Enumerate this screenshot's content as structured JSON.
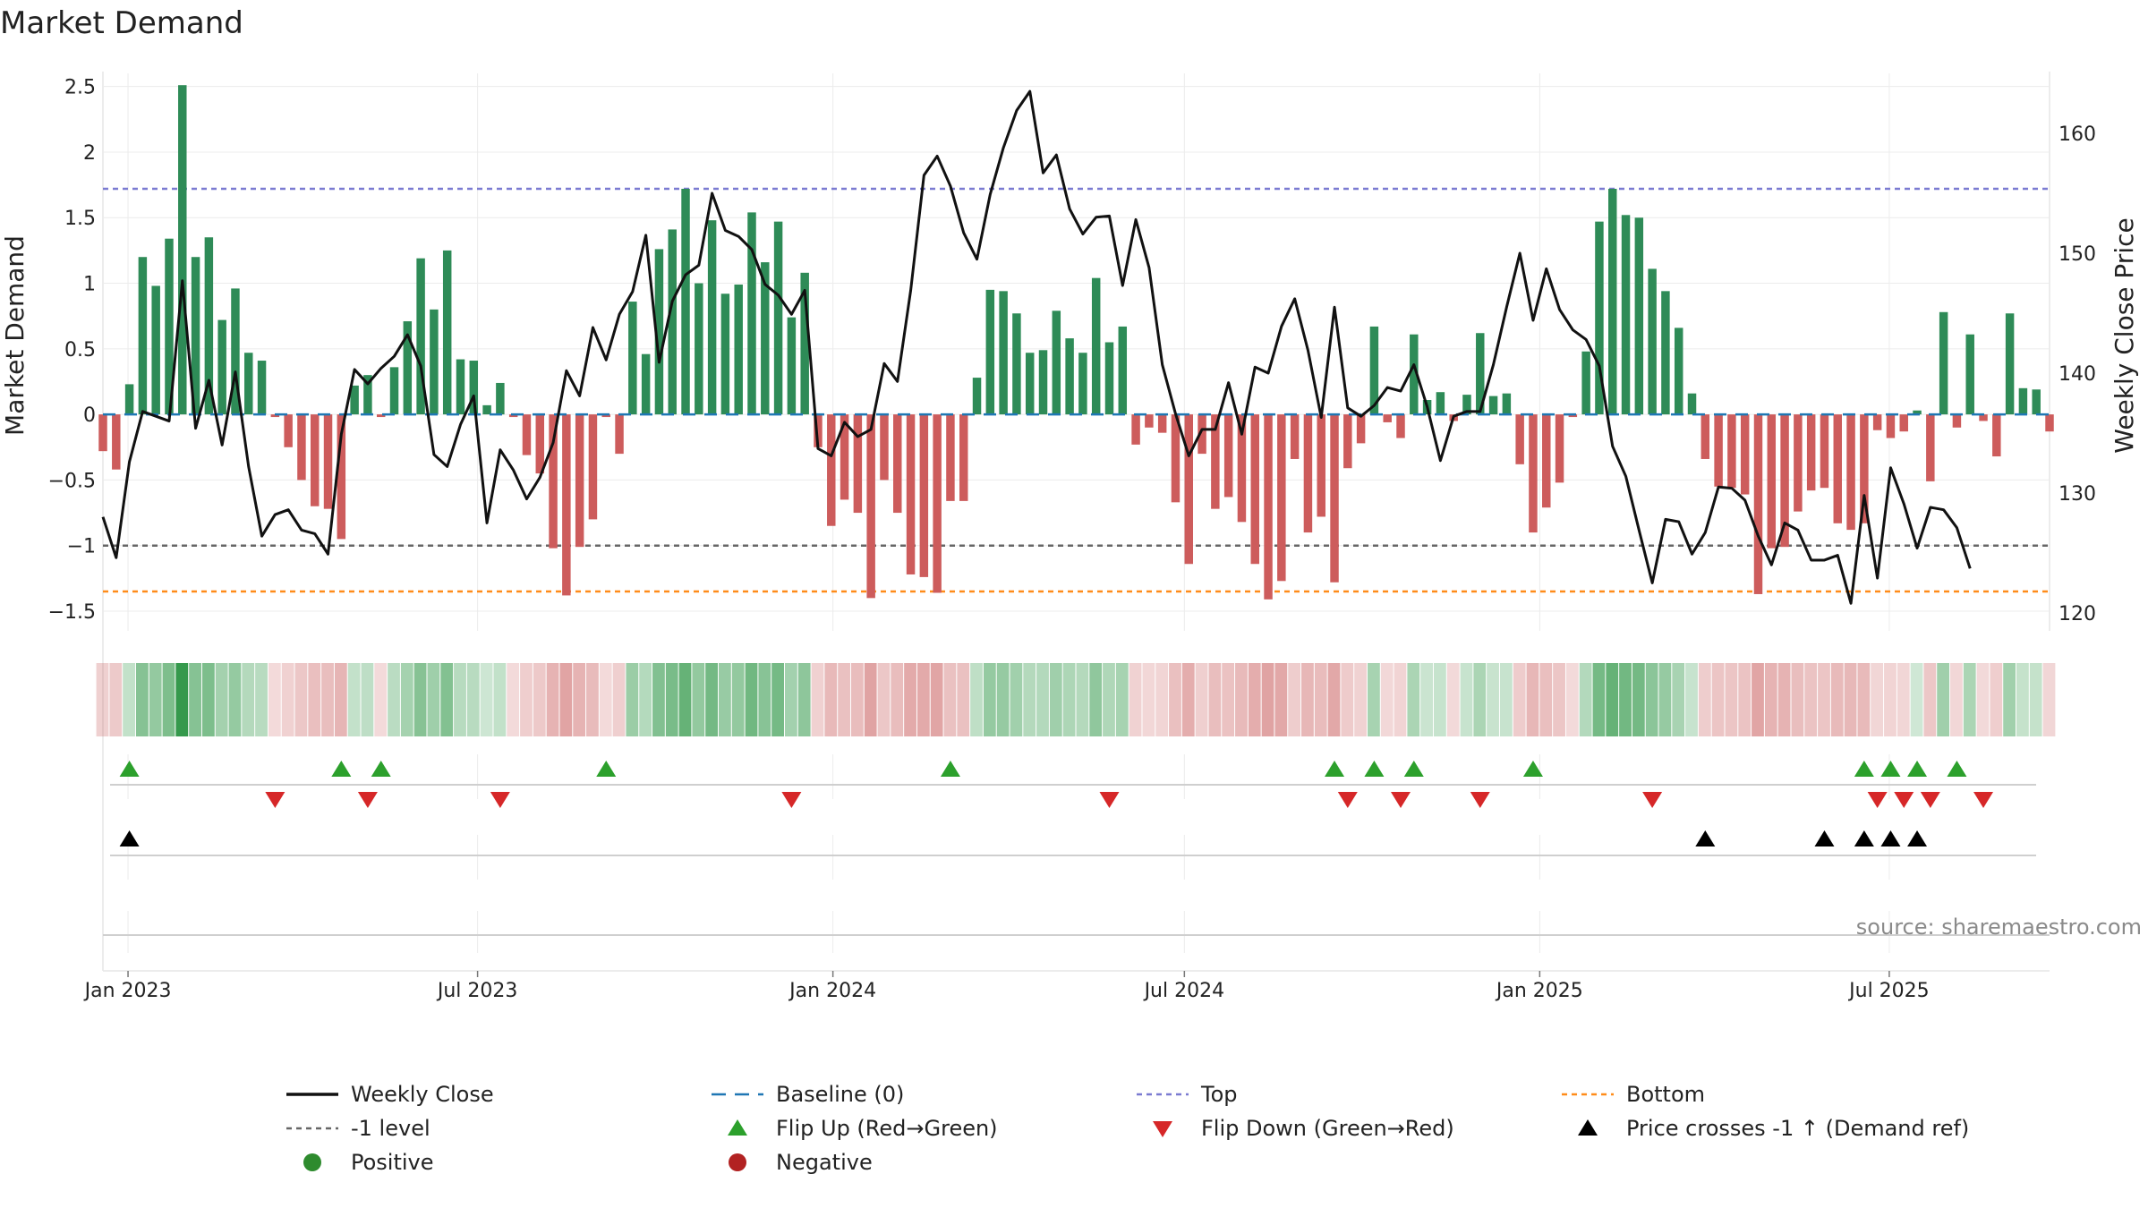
{
  "chart_data": {
    "type": "bar+line",
    "title": "Market Demand",
    "ylabel": "Market Demand",
    "y2label": "Weekly Close Price",
    "ylim": [
      -1.65,
      2.6
    ],
    "y2lim": [
      118.5,
      165
    ],
    "yticks": [
      2.5,
      2,
      1.5,
      1,
      0.5,
      0,
      -0.5,
      -1,
      -1.5
    ],
    "ytick_labels": [
      "2.5",
      "2",
      "1.5",
      "1",
      "0.5",
      "0",
      "−0.5",
      "−1",
      "−1.5"
    ],
    "y2ticks": [
      160,
      150,
      140,
      130,
      120
    ],
    "y2tick_labels": [
      "160",
      "150",
      "140",
      "130",
      "120"
    ],
    "xticks": [
      "2023-01-01",
      "2023-07-01",
      "2024-01-01",
      "2024-07-01",
      "2025-01-01",
      "2025-07-01"
    ],
    "xtick_labels": [
      "Jan 2023",
      "Jul 2023",
      "Jan 2024",
      "Jul 2024",
      "Jan 2025",
      "Jul 2025"
    ],
    "xstart": "2022-12-19",
    "xend": "2025-09-22",
    "levels": {
      "top": 1.72,
      "bottom": -1.35,
      "minus_one": -1
    },
    "demand": [
      -0.28,
      -0.42,
      0.23,
      1.2,
      0.98,
      1.34,
      2.51,
      1.2,
      1.35,
      0.72,
      0.96,
      0.47,
      0.41,
      -0.02,
      -0.25,
      -0.5,
      -0.7,
      -0.72,
      -0.95,
      0.22,
      0.3,
      -0.02,
      0.36,
      0.71,
      1.19,
      0.8,
      1.25,
      0.42,
      0.41,
      0.07,
      0.24,
      -0.02,
      -0.31,
      -0.45,
      -1.02,
      -1.38,
      -1.01,
      -0.8,
      -0.02,
      -0.3,
      0.86,
      0.46,
      1.26,
      1.41,
      1.72,
      1.0,
      1.48,
      0.92,
      0.99,
      1.54,
      1.16,
      1.47,
      0.74,
      1.08,
      -0.25,
      -0.85,
      -0.65,
      -0.75,
      -1.4,
      -0.5,
      -0.75,
      -1.22,
      -1.24,
      -1.36,
      -0.66,
      -0.66,
      0.28,
      0.95,
      0.94,
      0.77,
      0.47,
      0.49,
      0.79,
      0.58,
      0.47,
      1.04,
      0.55,
      0.67,
      -0.23,
      -0.1,
      -0.14,
      -0.67,
      -1.14,
      -0.3,
      -0.72,
      -0.63,
      -0.82,
      -1.14,
      -1.41,
      -1.27,
      -0.34,
      -0.9,
      -0.78,
      -1.28,
      -0.41,
      -0.22,
      0.67,
      -0.06,
      -0.18,
      0.61,
      0.11,
      0.17,
      -0.05,
      0.15,
      0.62,
      0.14,
      0.16,
      -0.38,
      -0.9,
      -0.71,
      -0.52,
      -0.02,
      0.48,
      1.47,
      1.72,
      1.52,
      1.5,
      1.11,
      0.94,
      0.66,
      0.16,
      -0.34,
      -0.55,
      -0.56,
      -0.61,
      -1.37,
      -1.02,
      -1.01,
      -0.74,
      -0.58,
      -0.56,
      -0.83,
      -0.88,
      -0.83,
      -0.12,
      -0.18,
      -0.13,
      0.03,
      -0.51,
      0.78,
      -0.1,
      0.61,
      -0.05,
      -0.32,
      0.77,
      0.2,
      0.19,
      -0.13
    ],
    "close_points": [
      [
        0,
        128.0
      ],
      [
        1,
        124.6
      ],
      [
        2,
        132.6
      ],
      [
        3,
        136.8
      ],
      [
        4,
        136.4
      ],
      [
        5,
        136.0
      ],
      [
        6,
        147.7
      ],
      [
        7,
        135.4
      ],
      [
        8,
        139.4
      ],
      [
        9,
        134.0
      ],
      [
        10,
        140.1
      ],
      [
        11,
        132.2
      ],
      [
        12,
        126.4
      ],
      [
        13,
        128.2
      ],
      [
        14,
        128.6
      ],
      [
        15,
        126.9
      ],
      [
        16,
        126.6
      ],
      [
        17,
        124.9
      ],
      [
        18,
        134.9
      ],
      [
        19,
        140.3
      ],
      [
        20,
        139.1
      ],
      [
        21,
        140.4
      ],
      [
        22,
        141.4
      ],
      [
        23,
        143.2
      ],
      [
        24,
        140.6
      ],
      [
        25,
        133.2
      ],
      [
        26,
        132.2
      ],
      [
        27,
        135.7
      ],
      [
        28,
        138.1
      ],
      [
        29,
        127.5
      ],
      [
        30,
        133.6
      ],
      [
        31,
        131.9
      ],
      [
        32,
        129.5
      ],
      [
        33,
        131.3
      ],
      [
        34,
        134.2
      ],
      [
        35,
        140.2
      ],
      [
        36,
        138.1
      ],
      [
        37,
        143.8
      ],
      [
        38,
        141.1
      ],
      [
        39,
        144.9
      ],
      [
        40,
        146.8
      ],
      [
        41,
        151.5
      ],
      [
        42,
        140.9
      ],
      [
        43,
        146.0
      ],
      [
        44,
        148.2
      ],
      [
        45,
        149.0
      ],
      [
        46,
        155.0
      ],
      [
        47,
        151.9
      ],
      [
        48,
        151.4
      ],
      [
        49,
        150.3
      ],
      [
        50,
        147.4
      ],
      [
        51,
        146.5
      ],
      [
        52,
        144.9
      ],
      [
        53,
        146.9
      ],
      [
        54,
        133.7
      ],
      [
        55,
        133.1
      ],
      [
        56,
        135.9
      ],
      [
        57,
        134.7
      ],
      [
        58,
        135.3
      ],
      [
        59,
        140.8
      ],
      [
        60,
        139.3
      ],
      [
        61,
        146.9
      ],
      [
        62,
        156.5
      ],
      [
        63,
        158.1
      ],
      [
        64,
        155.6
      ],
      [
        65,
        151.7
      ],
      [
        66,
        149.5
      ],
      [
        67,
        154.9
      ],
      [
        68,
        158.8
      ],
      [
        69,
        161.9
      ],
      [
        70,
        163.5
      ],
      [
        71,
        156.7
      ],
      [
        72,
        158.2
      ],
      [
        73,
        153.7
      ],
      [
        74,
        151.6
      ],
      [
        75,
        153.0
      ],
      [
        76,
        153.1
      ],
      [
        77,
        147.3
      ],
      [
        78,
        152.8
      ],
      [
        79,
        148.8
      ],
      [
        80,
        140.7
      ],
      [
        81,
        136.6
      ],
      [
        82,
        133.1
      ],
      [
        83,
        135.3
      ],
      [
        84,
        135.3
      ],
      [
        85,
        139.2
      ],
      [
        86,
        134.9
      ],
      [
        87,
        140.5
      ],
      [
        88,
        140.0
      ],
      [
        89,
        143.9
      ],
      [
        90,
        146.2
      ],
      [
        91,
        141.9
      ],
      [
        92,
        136.3
      ],
      [
        93,
        145.5
      ],
      [
        94,
        137.1
      ],
      [
        95,
        136.4
      ],
      [
        96,
        137.3
      ],
      [
        97,
        138.8
      ],
      [
        98,
        138.5
      ],
      [
        99,
        140.7
      ],
      [
        100,
        137.2
      ],
      [
        101,
        132.7
      ],
      [
        102,
        136.4
      ],
      [
        103,
        136.8
      ],
      [
        104,
        136.8
      ],
      [
        105,
        140.7
      ],
      [
        106,
        145.5
      ],
      [
        107,
        150.0
      ],
      [
        108,
        144.4
      ],
      [
        109,
        148.7
      ],
      [
        110,
        145.3
      ],
      [
        111,
        143.6
      ],
      [
        112,
        142.8
      ],
      [
        113,
        140.6
      ],
      [
        114,
        133.9
      ],
      [
        115,
        131.4
      ],
      [
        116,
        126.9
      ],
      [
        117,
        122.5
      ],
      [
        118,
        127.8
      ],
      [
        119,
        127.6
      ],
      [
        120,
        124.9
      ],
      [
        121,
        126.7
      ],
      [
        122,
        130.5
      ],
      [
        123,
        130.4
      ],
      [
        124,
        129.4
      ],
      [
        125,
        126.4
      ],
      [
        126,
        124.0
      ],
      [
        127,
        127.5
      ],
      [
        128,
        126.9
      ],
      [
        129,
        124.4
      ],
      [
        130,
        124.4
      ],
      [
        131,
        124.8
      ],
      [
        132,
        120.8
      ],
      [
        133,
        129.8
      ],
      [
        134,
        122.9
      ],
      [
        135,
        132.1
      ],
      [
        136,
        129.1
      ],
      [
        137,
        125.4
      ],
      [
        138,
        128.8
      ],
      [
        139,
        128.6
      ],
      [
        140,
        127.1
      ],
      [
        141,
        123.7
      ]
    ],
    "flip_up_weeks": [
      2,
      18,
      21,
      38,
      64,
      93,
      96,
      99,
      108,
      133,
      135,
      137,
      140
    ],
    "flip_down_weeks": [
      13,
      20,
      30,
      52,
      76,
      94,
      98,
      104,
      117,
      134,
      136,
      138,
      142
    ],
    "price_cross_weeks": [
      2,
      121,
      130,
      133,
      135,
      137
    ],
    "legend": [
      "Weekly Close",
      "Baseline (0)",
      "Top",
      "Bottom",
      "-1 level",
      "Flip Up (Red→Green)",
      "Flip Down (Green→Red)",
      "Price crosses -1 ↑ (Demand ref)",
      "Positive",
      "Negative"
    ],
    "source": "source: sharemaestro.com",
    "colors": {
      "positive": "#2e8b57",
      "negative": "#cd5c5c",
      "close": "#111111",
      "baseline": "#1f77b4",
      "top": "#7b7bd1",
      "bottom": "#ff8c1a",
      "minus_one": "#666666",
      "flip_up": "#2ca02c",
      "flip_down": "#d62728",
      "cross": "#000000",
      "pos_dot": "#2e8b2e",
      "neg_dot": "#b22222"
    }
  }
}
